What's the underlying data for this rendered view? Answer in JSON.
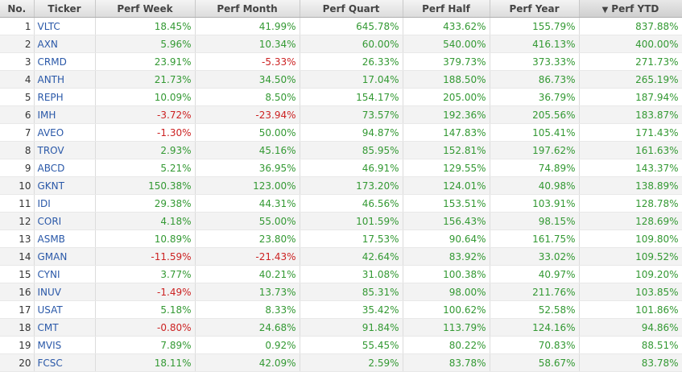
{
  "table": {
    "headers": {
      "no": "No.",
      "ticker": "Ticker",
      "perf_week": "Perf Week",
      "perf_month": "Perf Month",
      "perf_quart": "Perf Quart",
      "perf_half": "Perf Half",
      "perf_year": "Perf Year",
      "perf_ytd": "Perf YTD"
    },
    "sort_arrow_icon": "sort-descending-icon",
    "colors": {
      "positive": "#339933",
      "negative": "#cc2222",
      "ticker_link": "#2a58a8"
    },
    "rows": [
      [
        "1",
        "VLTC",
        "18.45%",
        "41.99%",
        "645.78%",
        "433.62%",
        "155.79%",
        "837.88%"
      ],
      [
        "2",
        "AXN",
        "5.96%",
        "10.34%",
        "60.00%",
        "540.00%",
        "416.13%",
        "400.00%"
      ],
      [
        "3",
        "CRMD",
        "23.91%",
        "-5.33%",
        "26.33%",
        "379.73%",
        "373.33%",
        "271.73%"
      ],
      [
        "4",
        "ANTH",
        "21.73%",
        "34.50%",
        "17.04%",
        "188.50%",
        "86.73%",
        "265.19%"
      ],
      [
        "5",
        "REPH",
        "10.09%",
        "8.50%",
        "154.17%",
        "205.00%",
        "36.79%",
        "187.94%"
      ],
      [
        "6",
        "IMH",
        "-3.72%",
        "-23.94%",
        "73.57%",
        "192.36%",
        "205.56%",
        "183.87%"
      ],
      [
        "7",
        "AVEO",
        "-1.30%",
        "50.00%",
        "94.87%",
        "147.83%",
        "105.41%",
        "171.43%"
      ],
      [
        "8",
        "TROV",
        "2.93%",
        "45.16%",
        "85.95%",
        "152.81%",
        "197.62%",
        "161.63%"
      ],
      [
        "9",
        "ABCD",
        "5.21%",
        "36.95%",
        "46.91%",
        "129.55%",
        "74.89%",
        "143.37%"
      ],
      [
        "10",
        "GKNT",
        "150.38%",
        "123.00%",
        "173.20%",
        "124.01%",
        "40.98%",
        "138.89%"
      ],
      [
        "11",
        "IDI",
        "29.38%",
        "44.31%",
        "46.56%",
        "153.51%",
        "103.91%",
        "128.78%"
      ],
      [
        "12",
        "CORI",
        "4.18%",
        "55.00%",
        "101.59%",
        "156.43%",
        "98.15%",
        "128.69%"
      ],
      [
        "13",
        "ASMB",
        "10.89%",
        "23.80%",
        "17.53%",
        "90.64%",
        "161.75%",
        "109.80%"
      ],
      [
        "14",
        "GMAN",
        "-11.59%",
        "-21.43%",
        "42.64%",
        "83.92%",
        "33.02%",
        "109.52%"
      ],
      [
        "15",
        "CYNI",
        "3.77%",
        "40.21%",
        "31.08%",
        "100.38%",
        "40.97%",
        "109.20%"
      ],
      [
        "16",
        "INUV",
        "-1.49%",
        "13.73%",
        "85.31%",
        "98.00%",
        "211.76%",
        "103.85%"
      ],
      [
        "17",
        "USAT",
        "5.18%",
        "8.33%",
        "35.42%",
        "100.62%",
        "52.58%",
        "101.86%"
      ],
      [
        "18",
        "CMT",
        "-0.80%",
        "24.68%",
        "91.84%",
        "113.79%",
        "124.16%",
        "94.86%"
      ],
      [
        "19",
        "MVIS",
        "7.89%",
        "0.92%",
        "55.45%",
        "80.22%",
        "70.83%",
        "88.51%"
      ],
      [
        "20",
        "FCSC",
        "18.11%",
        "42.09%",
        "2.59%",
        "83.78%",
        "58.67%",
        "83.78%"
      ]
    ]
  }
}
